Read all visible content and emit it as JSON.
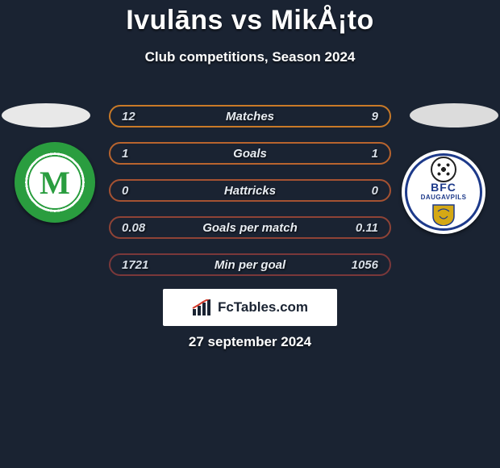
{
  "title": "Ivulāns vs MikÅ¡to",
  "subtitle": "Club competitions, Season 2024",
  "date": "27 september 2024",
  "brand": {
    "text": "FcTables.com"
  },
  "crest_left": {
    "letter": "M",
    "ring_color": "#2a9d3f"
  },
  "crest_right": {
    "label1": "BFC",
    "label2": "DAUGAVPILS",
    "ring_color": "#1d3a8a",
    "shield_color": "#d4a815"
  },
  "stats": {
    "rows": [
      {
        "left": "12",
        "label": "Matches",
        "right": "9",
        "border": "#c97a28"
      },
      {
        "left": "1",
        "label": "Goals",
        "right": "1",
        "border": "#b8642e"
      },
      {
        "left": "0",
        "label": "Hattricks",
        "right": "0",
        "border": "#a55232"
      },
      {
        "left": "0.08",
        "label": "Goals per match",
        "right": "0.11",
        "border": "#8f4336"
      },
      {
        "left": "1721",
        "label": "Min per goal",
        "right": "1056",
        "border": "#7a383a"
      }
    ]
  },
  "styling": {
    "page_bg": "#1a2332",
    "title_color": "#ffffff",
    "title_fontsize": 34,
    "subtitle_fontsize": 17,
    "stat_width": 350,
    "stat_height": 28,
    "stat_gap": 18,
    "stat_radius": 14,
    "oval_left_bg": "#e8e8e8",
    "oval_right_bg": "#dcdcdc",
    "brand_box_bg": "#ffffff"
  }
}
